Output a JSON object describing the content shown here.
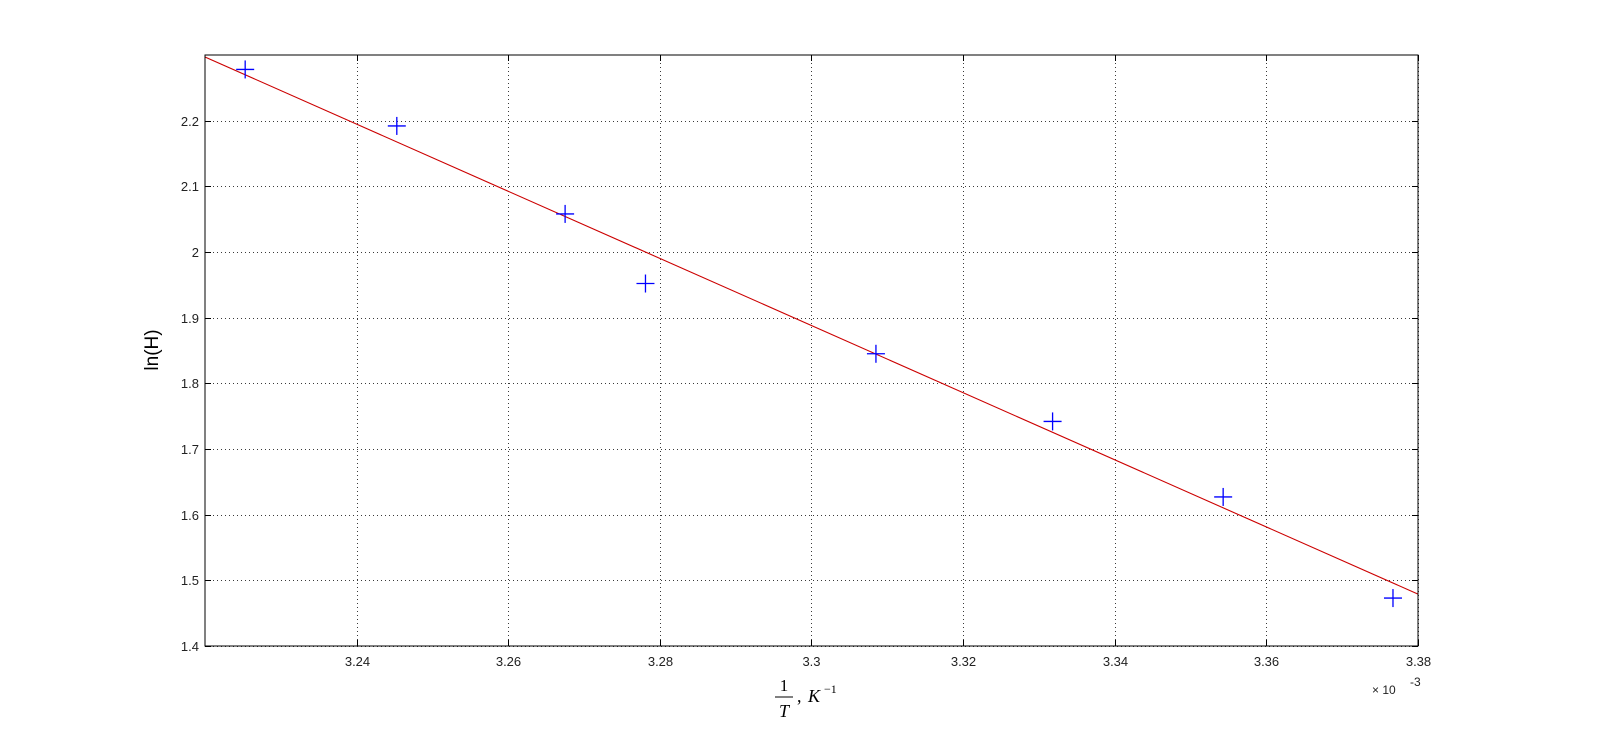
{
  "chart_data": {
    "type": "scatter",
    "title": "",
    "xlabel": {
      "numerator": "1",
      "denominator": "T",
      "separator": ",",
      "unit": "K",
      "unit_exponent": "−1"
    },
    "ylabel": "ln(H)",
    "x_multiplier_label": "× 10",
    "x_multiplier_exponent": "-3",
    "xlim": [
      3.22,
      3.38
    ],
    "ylim": [
      1.4,
      2.3
    ],
    "x_ticks": [
      3.24,
      3.26,
      3.28,
      3.3,
      3.32,
      3.34,
      3.36,
      3.38
    ],
    "x_tick_labels": [
      "3.24",
      "3.26",
      "3.28",
      "3.3",
      "3.32",
      "3.34",
      "3.36",
      "3.38"
    ],
    "y_ticks": [
      1.4,
      1.5,
      1.6,
      1.7,
      1.8,
      1.9,
      2,
      2.1,
      2.2
    ],
    "y_tick_labels": [
      "1.4",
      "1.5",
      "1.6",
      "1.7",
      "1.8",
      "1.9",
      "2",
      "2.1",
      "2.2"
    ],
    "grid": true,
    "series": [
      {
        "kind": "markers",
        "marker": "plus",
        "color": "#0000ff",
        "x": [
          3.2253,
          3.2453,
          3.2675,
          3.2781,
          3.3085,
          3.3318,
          3.3543,
          3.3767
        ],
        "y": [
          2.278,
          2.192,
          2.058,
          1.952,
          1.845,
          1.742,
          1.627,
          1.473
        ]
      },
      {
        "kind": "fit-line",
        "color": "#cc0000",
        "x": [
          3.22,
          3.38
        ],
        "y": [
          2.297,
          1.479
        ]
      }
    ]
  }
}
